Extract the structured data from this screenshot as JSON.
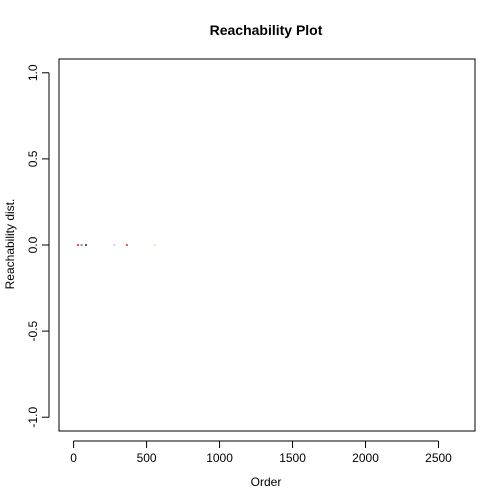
{
  "chart_data": {
    "type": "scatter",
    "title": "Reachability Plot",
    "xlabel": "Order",
    "ylabel": "Reachability dist.",
    "xlim": [
      -100,
      2750
    ],
    "ylim": [
      -1.08,
      1.08
    ],
    "x_ticks": [
      0,
      500,
      1000,
      1500,
      2000,
      2500
    ],
    "x_tick_labels": [
      "0",
      "500",
      "1000",
      "1500",
      "2000",
      "2500"
    ],
    "y_ticks": [
      -1.0,
      -0.5,
      0.0,
      0.5,
      1.0
    ],
    "y_tick_labels": [
      "-1.0",
      "-0.5",
      "0.0",
      "0.5",
      "1.0"
    ],
    "grid": false,
    "points": [
      {
        "x": 30,
        "y": 0.0,
        "color": "#e41a1c"
      },
      {
        "x": 55,
        "y": 0.0,
        "color": "#377eb8"
      },
      {
        "x": 85,
        "y": 0.0,
        "color": "#222222"
      },
      {
        "x": 280,
        "y": 0.0,
        "color": "#a6cee3"
      },
      {
        "x": 365,
        "y": 0.0,
        "color": "#e41a1c"
      },
      {
        "x": 555,
        "y": 0.0,
        "color": "#ffd27f"
      }
    ]
  }
}
